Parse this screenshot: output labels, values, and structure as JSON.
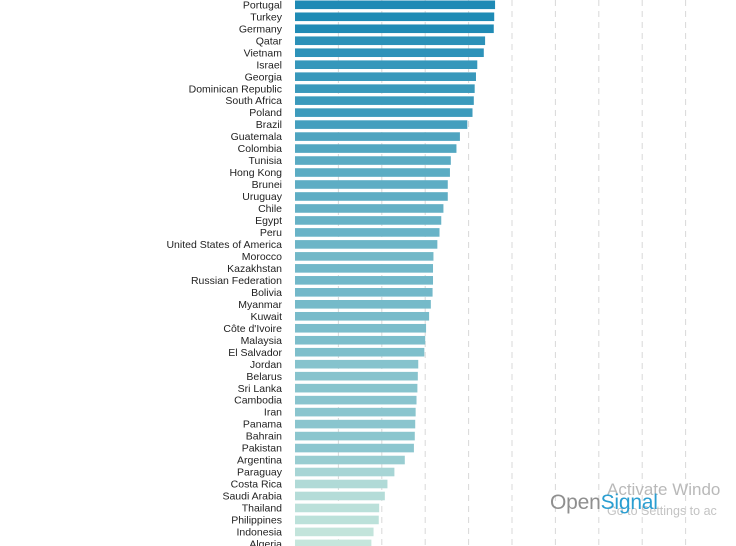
{
  "chart_data": {
    "type": "bar",
    "orientation": "horizontal",
    "title": "",
    "xlabel": "",
    "ylabel": "",
    "grid": true,
    "xlim": [
      0,
      9
    ],
    "categories": [
      "Portugal",
      "Turkey",
      "Germany",
      "Qatar",
      "Vietnam",
      "Israel",
      "Georgia",
      "Dominican Republic",
      "South Africa",
      "Poland",
      "Brazil",
      "Guatemala",
      "Colombia",
      "Tunisia",
      "Hong Kong",
      "Brunei",
      "Uruguay",
      "Chile",
      "Egypt",
      "Peru",
      "United States of America",
      "Morocco",
      "Kazakhstan",
      "Russian Federation",
      "Bolivia",
      "Myanmar",
      "Kuwait",
      "Côte d'Ivoire",
      "Malaysia",
      "El Salvador",
      "Jordan",
      "Belarus",
      "Sri Lanka",
      "Cambodia",
      "Iran",
      "Panama",
      "Bahrain",
      "Pakistan",
      "Argentina",
      "Paraguay",
      "Costa Rica",
      "Saudi Arabia",
      "Thailand",
      "Philippines",
      "Indonesia",
      "Algeria"
    ],
    "values": [
      4.61,
      4.59,
      4.58,
      4.38,
      4.35,
      4.2,
      4.17,
      4.14,
      4.12,
      4.09,
      3.97,
      3.8,
      3.72,
      3.59,
      3.57,
      3.52,
      3.52,
      3.42,
      3.37,
      3.33,
      3.28,
      3.19,
      3.18,
      3.18,
      3.17,
      3.13,
      3.09,
      3.02,
      3.0,
      2.98,
      2.84,
      2.83,
      2.82,
      2.8,
      2.78,
      2.77,
      2.76,
      2.74,
      2.53,
      2.29,
      2.13,
      2.07,
      1.94,
      1.93,
      1.81,
      1.76
    ],
    "colors": {
      "high": "#1e8ab5",
      "low": "#c6e6dc"
    }
  },
  "branding": {
    "open": "Open",
    "signal": "Signal"
  },
  "watermark": {
    "title": "Activate Windo",
    "subtitle": "Go to Settings to ac"
  }
}
